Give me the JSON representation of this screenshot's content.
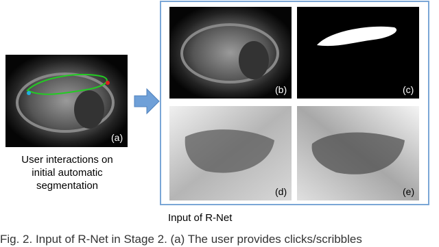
{
  "figure": {
    "panel_a": {
      "label": "(a)"
    },
    "left_caption": [
      "User interactions on",
      "initial automatic",
      "segmentation"
    ],
    "panels": [
      {
        "label": "(b)"
      },
      {
        "label": "(c)"
      },
      {
        "label": "(d)"
      },
      {
        "label": "(e)"
      }
    ],
    "box_caption": "Input of R-Net",
    "caption": "Fig. 2. Input of R-Net in Stage 2. (a) The user provides clicks/scribbles"
  }
}
